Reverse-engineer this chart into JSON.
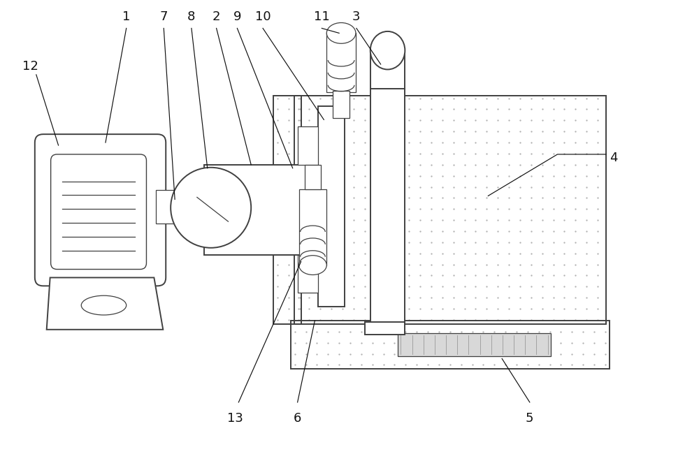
{
  "bg_color": "#ffffff",
  "line_color": "#404040",
  "dot_color": "#b0b0b0",
  "label_color": "#111111",
  "fig_width": 10.0,
  "fig_height": 6.6,
  "dpi": 100,
  "lw_main": 1.4,
  "lw_thin": 0.9,
  "label_fs": 13,
  "leader_lw": 0.85
}
